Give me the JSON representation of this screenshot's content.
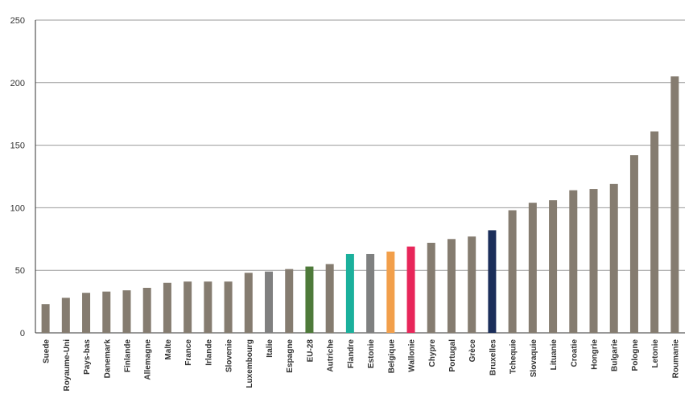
{
  "chart_data": {
    "type": "bar",
    "title": "",
    "xlabel": "",
    "ylabel": "",
    "ylim": [
      0,
      250
    ],
    "yticks": [
      0,
      50,
      100,
      150,
      200,
      250
    ],
    "grid": "horizontal",
    "categories": [
      "Suede",
      "Royaume-Uni",
      "Pays-bas",
      "Danemark",
      "Finlande",
      "Allemagne",
      "Malte",
      "France",
      "Irlande",
      "Slovenie",
      "Luxembourg",
      "Italie",
      "Espagne",
      "EU-28",
      "Autriche",
      "Flandre",
      "Estonie",
      "Belgique",
      "Wallonie",
      "Chypre",
      "Portugal",
      "Grèce",
      "Bruxelles",
      "Tchequie",
      "Slovaquie",
      "Lituanie",
      "Croatie",
      "Hongrie",
      "Bulgarie",
      "Pologne",
      "Letonie",
      "Roumanie"
    ],
    "values": [
      23,
      28,
      32,
      33,
      34,
      36,
      40,
      41,
      41,
      41,
      48,
      49,
      51,
      53,
      55,
      63,
      63,
      65,
      69,
      72,
      75,
      77,
      82,
      98,
      104,
      106,
      114,
      115,
      119,
      142,
      161,
      205
    ],
    "colors": [
      "#857c70",
      "#857c70",
      "#857c70",
      "#857c70",
      "#857c70",
      "#857c70",
      "#857c70",
      "#857c70",
      "#857c70",
      "#857c70",
      "#857c70",
      "#808080",
      "#857c70",
      "#4e7a3a",
      "#857c70",
      "#1bb09c",
      "#7f8080",
      "#f29f4a",
      "#e8265a",
      "#857c70",
      "#857c70",
      "#857c70",
      "#1b2e5a",
      "#857c70",
      "#857c70",
      "#857c70",
      "#857c70",
      "#857c70",
      "#857c70",
      "#857c70",
      "#857c70",
      "#857c70"
    ],
    "colors_meaning": {
      "default": "#857c70",
      "axis": "#333333",
      "gridline": "#9a9a9a"
    }
  }
}
